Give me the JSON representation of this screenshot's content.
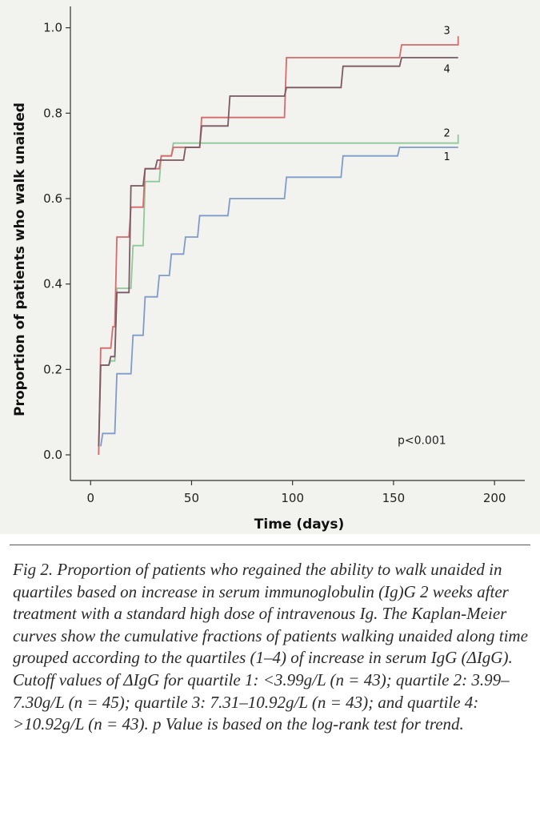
{
  "caption": "Fig 2. Proportion of patients who regained the ability to walk unaided in quartiles based on increase in serum immunoglobulin (Ig)G 2 weeks after treatment with a standard high dose of intravenous Ig. The Kaplan-Meier curves show the cumulative fractions of patients walking unaided along time grouped according to the quartiles (1–4) of increase in serum IgG (ΔIgG). Cutoff values of ΔIgG for quartile 1: <3.99g/L (n = 43); quartile 2: 3.99–7.30g/L (n = 45); quartile 3: 7.31–10.92g/L (n = 43); and quartile 4: >10.92g/L (n = 43). p Value is based on the log-rank test for trend.",
  "chart_data": {
    "type": "line",
    "subtype": "kaplan-meier step curves",
    "title": "",
    "xlabel": "Time (days)",
    "ylabel": "Proportion of patients who walk unaided",
    "xlim": [
      -10,
      215
    ],
    "ylim": [
      -0.06,
      1.05
    ],
    "x_ticks": [
      0,
      50,
      100,
      150,
      200
    ],
    "x_tick_labels": [
      "0",
      "50",
      "100",
      "150",
      "200"
    ],
    "y_ticks": [
      0.0,
      0.2,
      0.4,
      0.6,
      0.8,
      1.0
    ],
    "y_tick_labels": [
      "0.0",
      "0.2",
      "0.4",
      "0.6",
      "0.8",
      "1.0"
    ],
    "grid": false,
    "legend": "none (curves labeled directly at right end)",
    "annotation": "p<0.001",
    "series": [
      {
        "name": "1",
        "color": "#7f9cc8",
        "steps": [
          [
            5,
            0.02
          ],
          [
            6,
            0.05
          ],
          [
            12,
            0.05
          ],
          [
            13,
            0.19
          ],
          [
            20,
            0.19
          ],
          [
            21,
            0.28
          ],
          [
            26,
            0.28
          ],
          [
            27,
            0.37
          ],
          [
            33,
            0.37
          ],
          [
            34,
            0.42
          ],
          [
            39,
            0.42
          ],
          [
            40,
            0.47
          ],
          [
            46,
            0.47
          ],
          [
            47,
            0.51
          ],
          [
            53,
            0.51
          ],
          [
            54,
            0.56
          ],
          [
            68,
            0.56
          ],
          [
            69,
            0.6
          ],
          [
            96,
            0.6
          ],
          [
            97,
            0.65
          ],
          [
            124,
            0.65
          ],
          [
            125,
            0.7
          ],
          [
            152,
            0.7
          ],
          [
            153,
            0.72
          ],
          [
            182,
            0.72
          ]
        ]
      },
      {
        "name": "2",
        "color": "#8fc89a",
        "steps": [
          [
            4,
            0.0
          ],
          [
            5,
            0.21
          ],
          [
            9,
            0.21
          ],
          [
            10,
            0.22
          ],
          [
            12,
            0.22
          ],
          [
            13,
            0.39
          ],
          [
            20,
            0.39
          ],
          [
            21,
            0.49
          ],
          [
            26,
            0.49
          ],
          [
            27,
            0.64
          ],
          [
            34,
            0.64
          ],
          [
            35,
            0.7
          ],
          [
            40,
            0.7
          ],
          [
            41,
            0.73
          ],
          [
            182,
            0.73
          ],
          [
            182,
            0.75
          ]
        ]
      },
      {
        "name": "3",
        "color": "#d96a6a",
        "steps": [
          [
            4,
            0.0
          ],
          [
            5,
            0.25
          ],
          [
            10,
            0.25
          ],
          [
            11,
            0.3
          ],
          [
            12,
            0.3
          ],
          [
            13,
            0.51
          ],
          [
            19,
            0.51
          ],
          [
            20,
            0.58
          ],
          [
            26,
            0.58
          ],
          [
            27,
            0.67
          ],
          [
            34,
            0.67
          ],
          [
            35,
            0.7
          ],
          [
            40,
            0.7
          ],
          [
            41,
            0.72
          ],
          [
            54,
            0.72
          ],
          [
            55,
            0.79
          ],
          [
            96,
            0.79
          ],
          [
            97,
            0.93
          ],
          [
            153,
            0.93
          ],
          [
            154,
            0.96
          ],
          [
            182,
            0.96
          ],
          [
            182,
            0.98
          ]
        ]
      },
      {
        "name": "4",
        "color": "#7a5a64",
        "steps": [
          [
            4,
            0.02
          ],
          [
            5,
            0.21
          ],
          [
            9,
            0.21
          ],
          [
            10,
            0.23
          ],
          [
            12,
            0.23
          ],
          [
            13,
            0.38
          ],
          [
            19,
            0.38
          ],
          [
            20,
            0.63
          ],
          [
            26,
            0.63
          ],
          [
            27,
            0.67
          ],
          [
            32,
            0.67
          ],
          [
            33,
            0.69
          ],
          [
            46,
            0.69
          ],
          [
            47,
            0.72
          ],
          [
            54,
            0.72
          ],
          [
            55,
            0.77
          ],
          [
            68,
            0.77
          ],
          [
            69,
            0.84
          ],
          [
            96,
            0.84
          ],
          [
            97,
            0.86
          ],
          [
            124,
            0.86
          ],
          [
            125,
            0.91
          ],
          [
            153,
            0.91
          ],
          [
            154,
            0.93
          ],
          [
            182,
            0.93
          ]
        ]
      }
    ]
  }
}
